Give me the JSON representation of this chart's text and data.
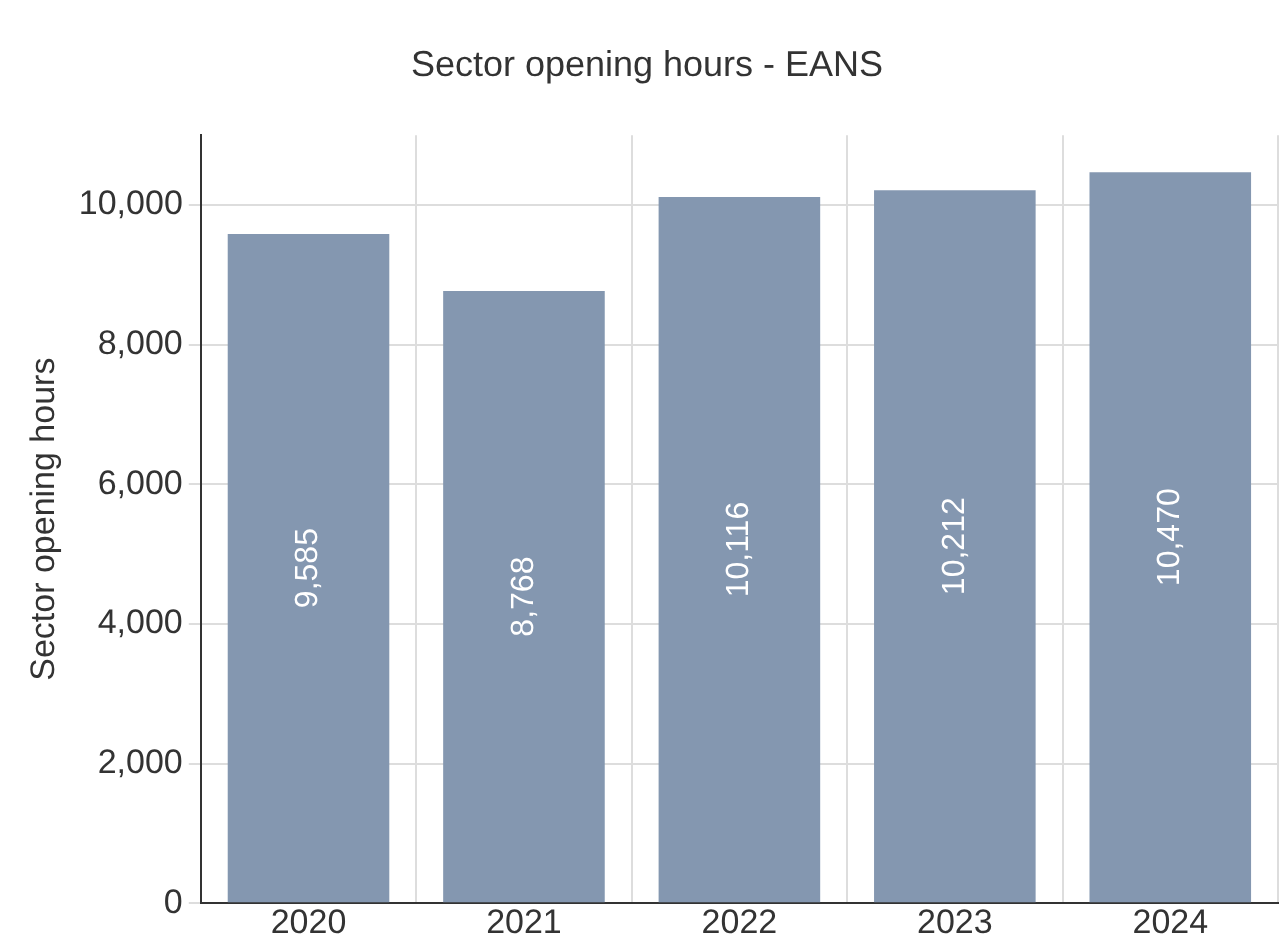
{
  "chart_data": {
    "type": "bar",
    "title": "Sector opening hours - EANS",
    "ylabel": "Sector opening hours",
    "categories": [
      "2020",
      "2021",
      "2022",
      "2023",
      "2024"
    ],
    "values": [
      9585,
      8768,
      10116,
      10212,
      10470
    ],
    "color": "#8497b0",
    "ylim": [
      0,
      11000
    ],
    "yticks": [
      {
        "value": 0,
        "label": "0"
      },
      {
        "value": 2000,
        "label": "2,000"
      },
      {
        "value": 4000,
        "label": "4,000"
      },
      {
        "value": 6000,
        "label": "6,000"
      },
      {
        "value": 8000,
        "label": "8,000"
      },
      {
        "value": 10000,
        "label": "10,000"
      }
    ],
    "grid": true,
    "value_labels": [
      "9,585",
      "8,768",
      "10,116",
      "10,212",
      "10,470"
    ]
  }
}
